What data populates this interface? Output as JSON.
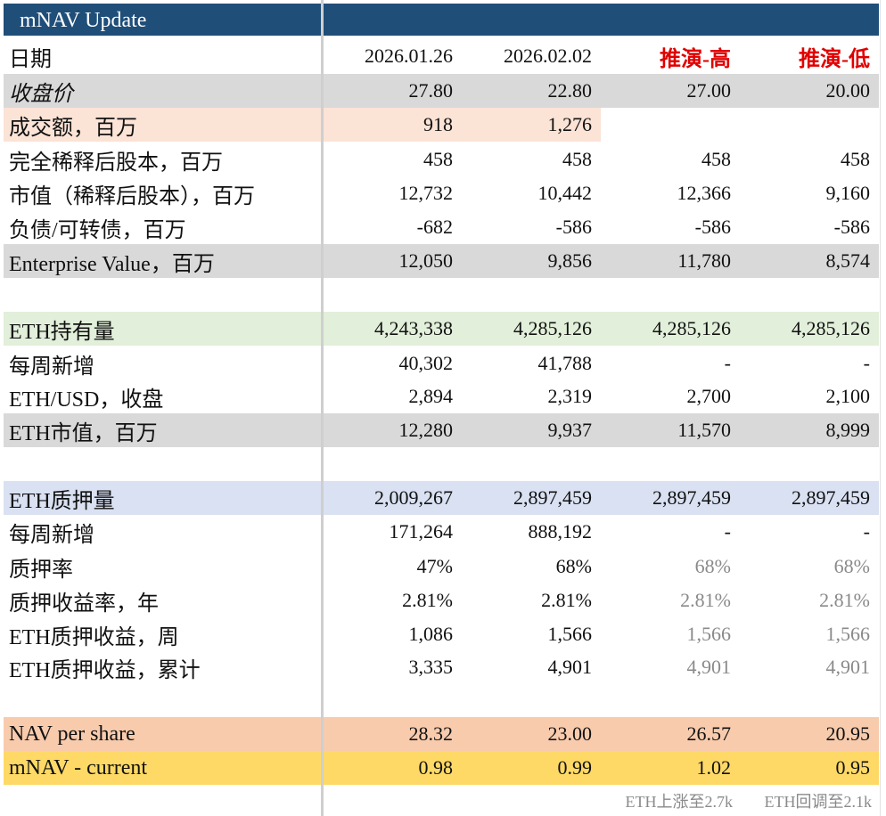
{
  "title": "mNAV Update",
  "colors": {
    "header_bg": "#1f4e79",
    "gray_band": "#d9d9d9",
    "peach_band": "#fbe3d6",
    "green_band": "#e2efda",
    "blue_band": "#d9e1f2",
    "nav_band": "#f8cbad",
    "mnav_band": "#ffd966",
    "red_text": "#e00000",
    "projection_gray": "#8a8a8a"
  },
  "header_row": {
    "label": "日期",
    "col1": "2026.01.26",
    "col2": "2026.02.02",
    "col3": "推演-高",
    "col4": "推演-低"
  },
  "rows": {
    "close": {
      "label": "收盘价",
      "v1": "27.80",
      "v2": "22.80",
      "v3": "27.00",
      "v4": "20.00"
    },
    "turnover": {
      "label": "成交额，百万",
      "v1": "918",
      "v2": "1,276"
    },
    "shares": {
      "label": "完全稀释后股本，百万",
      "v1": "458",
      "v2": "458",
      "v3": "458",
      "v4": "458"
    },
    "mcap": {
      "label": "市值（稀释后股本），百万",
      "v1": "12,732",
      "v2": "10,442",
      "v3": "12,366",
      "v4": "9,160"
    },
    "debt": {
      "label": "负债/可转债，百万",
      "v1": "-682",
      "v2": "-586",
      "v3": "-586",
      "v4": "-586"
    },
    "ev": {
      "label": "Enterprise Value，百万",
      "v1": "12,050",
      "v2": "9,856",
      "v3": "11,780",
      "v4": "8,574"
    },
    "eth_hold": {
      "label": "ETH持有量",
      "v1": "4,243,338",
      "v2": "4,285,126",
      "v3": "4,285,126",
      "v4": "4,285,126"
    },
    "weekly_add": {
      "label": "每周新增",
      "v1": "40,302",
      "v2": "41,788",
      "v3": "-",
      "v4": "-"
    },
    "eth_usd": {
      "label": "ETH/USD，收盘",
      "v1": "2,894",
      "v2": "2,319",
      "v3": "2,700",
      "v4": "2,100"
    },
    "eth_mv": {
      "label": "ETH市值，百万",
      "v1": "12,280",
      "v2": "9,937",
      "v3": "11,570",
      "v4": "8,999"
    },
    "eth_staked": {
      "label": "ETH质押量",
      "v1": "2,009,267",
      "v2": "2,897,459",
      "v3": "2,897,459",
      "v4": "2,897,459"
    },
    "staked_add": {
      "label": "每周新增",
      "v1": "171,264",
      "v2": "888,192",
      "v3": "-",
      "v4": "-"
    },
    "stake_rate": {
      "label": "质押率",
      "v1": "47%",
      "v2": "68%",
      "v3": "68%",
      "v4": "68%"
    },
    "stake_yield": {
      "label": "质押收益率，年",
      "v1": "2.81%",
      "v2": "2.81%",
      "v3": "2.81%",
      "v4": "2.81%"
    },
    "stake_week": {
      "label": "ETH质押收益，周",
      "v1": "1,086",
      "v2": "1,566",
      "v3": "1,566",
      "v4": "1,566"
    },
    "stake_cum": {
      "label": "ETH质押收益，累计",
      "v1": "3,335",
      "v2": "4,901",
      "v3": "4,901",
      "v4": "4,901"
    },
    "nav": {
      "label": "NAV per share",
      "v1": "28.32",
      "v2": "23.00",
      "v3": "26.57",
      "v4": "20.95"
    },
    "mnav": {
      "label": "mNAV - current",
      "v1": "0.98",
      "v2": "0.99",
      "v3": "1.02",
      "v4": "0.95"
    }
  },
  "footnotes": {
    "high": "ETH上涨至2.7k",
    "low": "ETH回调至2.1k"
  }
}
